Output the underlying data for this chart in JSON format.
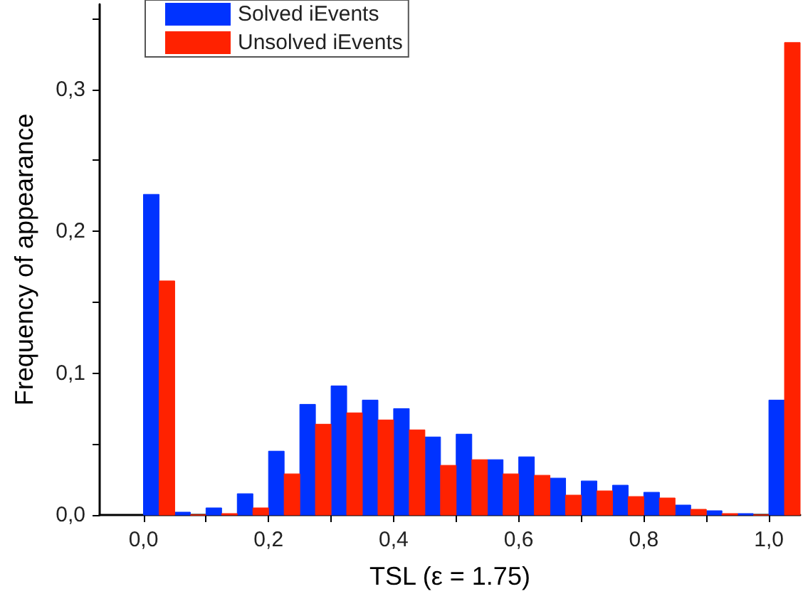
{
  "chart_data": {
    "type": "histogram",
    "xlabel": "TSL (ε = 1.75)",
    "ylabel": "Frequency of appearance",
    "bins": [
      0,
      0.05,
      0.1,
      0.15,
      0.2,
      0.25,
      0.3,
      0.35,
      0.4,
      0.45,
      0.5,
      0.55,
      0.6,
      0.65,
      0.7,
      0.75,
      0.8,
      0.85,
      0.9,
      0.95,
      1.0,
      1.05
    ],
    "series": [
      {
        "name": "Solved iEvents",
        "color": "#0033ff",
        "values": [
          0.226,
          0.002,
          0.005,
          0.015,
          0.045,
          0.078,
          0.091,
          0.081,
          0.075,
          0.055,
          0.057,
          0.039,
          0.041,
          0.026,
          0.024,
          0.021,
          0.016,
          0.007,
          0.003,
          0.001,
          0.081
        ]
      },
      {
        "name": "Unsolved iEvents",
        "color": "#ff2200",
        "values": [
          0.165,
          0,
          0.001,
          0.005,
          0.029,
          0.064,
          0.072,
          0.067,
          0.06,
          0.035,
          0.039,
          0.029,
          0.028,
          0.014,
          0.017,
          0.013,
          0.012,
          0.004,
          0.001,
          0,
          0.333
        ]
      }
    ],
    "xlim": [
      -0.07,
      1.05
    ],
    "xticks": [
      {
        "value": 0,
        "label": "0,0"
      },
      {
        "value": 0.1,
        "label": null
      },
      {
        "value": 0.2,
        "label": "0,2"
      },
      {
        "value": 0.3,
        "label": null
      },
      {
        "value": 0.4,
        "label": "0,4"
      },
      {
        "value": 0.5,
        "label": null
      },
      {
        "value": 0.6,
        "label": "0,6"
      },
      {
        "value": 0.7,
        "label": null
      },
      {
        "value": 0.8,
        "label": "0,8"
      },
      {
        "value": 0.9,
        "label": null
      },
      {
        "value": 1.0,
        "label": "1,0"
      }
    ],
    "ylim": [
      0,
      0.36
    ],
    "yticks": [
      {
        "value": 0,
        "label": "0,0"
      },
      {
        "value": 0.05,
        "label": null
      },
      {
        "value": 0.1,
        "label": "0,1"
      },
      {
        "value": 0.15,
        "label": null
      },
      {
        "value": 0.2,
        "label": "0,2"
      },
      {
        "value": 0.25,
        "label": null
      },
      {
        "value": 0.3,
        "label": "0,3"
      },
      {
        "value": 0.35,
        "label": null
      }
    ],
    "grid": false,
    "legend": "top left"
  }
}
